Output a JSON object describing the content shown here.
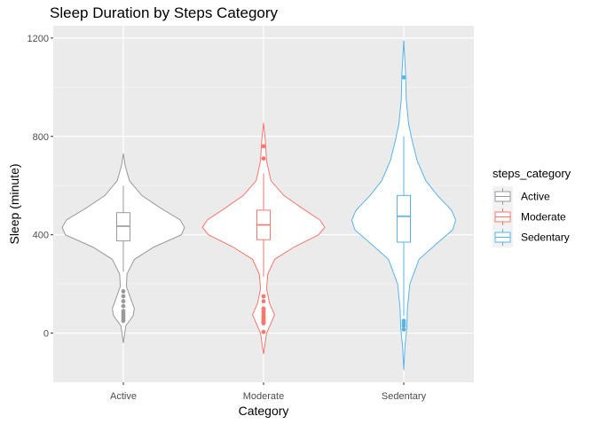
{
  "chart_data": {
    "type": "violin",
    "title": "Sleep Duration by Steps Category",
    "xlabel": "Category",
    "ylabel": "Sleep (minute)",
    "categories": [
      "Active",
      "Moderate",
      "Sedentary"
    ],
    "ylim": [
      -200,
      1250
    ],
    "yticks": [
      0,
      400,
      800,
      1200
    ],
    "grid": true,
    "legend": {
      "title": "steps_category",
      "position": "right",
      "entries": [
        "Active",
        "Moderate",
        "Sedentary"
      ]
    },
    "colors": {
      "Active": "#999999",
      "Moderate": "#f8766d",
      "Sedentary": "#56b4e9"
    },
    "series": [
      {
        "name": "Active",
        "box": {
          "q1": 375,
          "median": 435,
          "q3": 490,
          "whisker_low": 250,
          "whisker_high": 600
        },
        "outliers": [
          170,
          150,
          130,
          110,
          90,
          80,
          70,
          60,
          50
        ],
        "density": [
          [
            -40,
            0.0
          ],
          [
            30,
            0.04
          ],
          [
            70,
            0.16
          ],
          [
            100,
            0.18
          ],
          [
            140,
            0.12
          ],
          [
            190,
            0.05
          ],
          [
            240,
            0.06
          ],
          [
            300,
            0.18
          ],
          [
            350,
            0.5
          ],
          [
            400,
            0.95
          ],
          [
            430,
            1.0
          ],
          [
            460,
            0.93
          ],
          [
            510,
            0.6
          ],
          [
            560,
            0.3
          ],
          [
            620,
            0.1
          ],
          [
            680,
            0.03
          ],
          [
            730,
            0.0
          ]
        ]
      },
      {
        "name": "Moderate",
        "box": {
          "q1": 380,
          "median": 440,
          "q3": 500,
          "whisker_low": 230,
          "whisker_high": 650
        },
        "outliers": [
          760,
          710,
          150,
          130,
          100,
          90,
          80,
          70,
          65,
          60,
          55,
          50,
          45,
          40,
          5
        ],
        "density": [
          [
            -85,
            0.0
          ],
          [
            0,
            0.05
          ],
          [
            40,
            0.12
          ],
          [
            75,
            0.18
          ],
          [
            120,
            0.1
          ],
          [
            180,
            0.05
          ],
          [
            240,
            0.07
          ],
          [
            300,
            0.18
          ],
          [
            350,
            0.5
          ],
          [
            400,
            0.9
          ],
          [
            430,
            1.0
          ],
          [
            460,
            0.92
          ],
          [
            510,
            0.62
          ],
          [
            560,
            0.33
          ],
          [
            620,
            0.12
          ],
          [
            700,
            0.05
          ],
          [
            780,
            0.03
          ],
          [
            855,
            0.0
          ]
        ]
      },
      {
        "name": "Sedentary",
        "box": {
          "q1": 370,
          "median": 475,
          "q3": 560,
          "whisker_low": 70,
          "whisker_high": 800
        },
        "outliers": [
          1040,
          50,
          40,
          30,
          15
        ],
        "density": [
          [
            -150,
            0.0
          ],
          [
            -50,
            0.02
          ],
          [
            20,
            0.05
          ],
          [
            100,
            0.06
          ],
          [
            200,
            0.1
          ],
          [
            300,
            0.25
          ],
          [
            360,
            0.52
          ],
          [
            420,
            0.8
          ],
          [
            460,
            0.85
          ],
          [
            500,
            0.78
          ],
          [
            560,
            0.55
          ],
          [
            620,
            0.36
          ],
          [
            700,
            0.22
          ],
          [
            780,
            0.14
          ],
          [
            850,
            0.08
          ],
          [
            950,
            0.04
          ],
          [
            1050,
            0.03
          ],
          [
            1190,
            0.0
          ]
        ]
      }
    ]
  }
}
